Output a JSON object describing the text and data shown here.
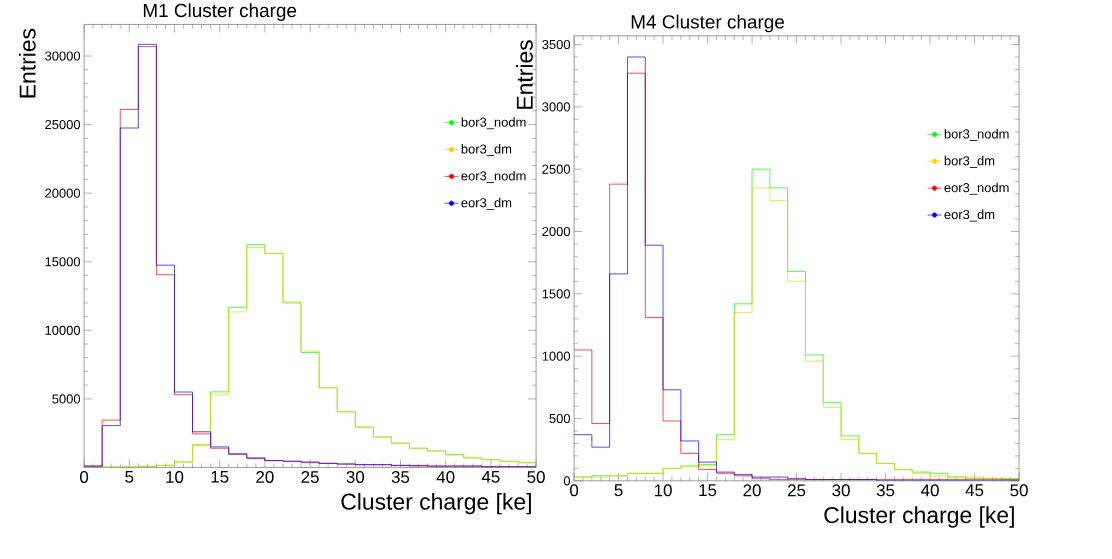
{
  "chart_data": [
    {
      "type": "histogram",
      "title": "M1 Cluster charge",
      "xlabel": "Cluster charge [ke]",
      "ylabel": "Entries",
      "bins": [
        0,
        2,
        4,
        6,
        8,
        10,
        12,
        14,
        16,
        18,
        20,
        22,
        24,
        26,
        28,
        30,
        32,
        34,
        36,
        38,
        40,
        42,
        44,
        46,
        48,
        50
      ],
      "series": [
        {
          "name": "bor3_nodm",
          "color": "#00ff00",
          "values": [
            30,
            30,
            50,
            80,
            150,
            400,
            1650,
            5510,
            11670,
            16250,
            15600,
            12000,
            8380,
            5810,
            4060,
            2940,
            2220,
            1770,
            1400,
            1200,
            950,
            700,
            570,
            450,
            350
          ]
        },
        {
          "name": "bor3_dm",
          "color": "#ffcc00",
          "values": [
            30,
            30,
            50,
            80,
            150,
            400,
            1600,
            5300,
            11340,
            16030,
            15600,
            12070,
            8480,
            5810,
            4060,
            2940,
            2220,
            1770,
            1400,
            1200,
            900,
            700,
            570,
            450,
            350
          ]
        },
        {
          "name": "eor3_nodm",
          "color": "#ff0000",
          "values": [
            100,
            3450,
            26100,
            30700,
            14050,
            5300,
            2450,
            1400,
            950,
            650,
            500,
            450,
            350,
            300,
            250,
            200,
            200,
            150,
            100,
            100,
            100,
            100,
            50,
            50,
            50
          ]
        },
        {
          "name": "eor3_dm",
          "color": "#0000ff",
          "values": [
            100,
            3050,
            24750,
            30850,
            14750,
            5500,
            2600,
            1500,
            1000,
            700,
            500,
            450,
            400,
            300,
            250,
            200,
            200,
            150,
            150,
            100,
            100,
            100,
            50,
            50,
            50
          ]
        }
      ],
      "xlim": [
        0,
        50
      ],
      "ylim": [
        0,
        32300
      ],
      "xticks": [
        0,
        5,
        10,
        15,
        20,
        25,
        30,
        35,
        40,
        45,
        50
      ],
      "yticks": [
        5000,
        10000,
        15000,
        20000,
        25000,
        30000
      ],
      "legend": "right"
    },
    {
      "type": "histogram",
      "title": "M4 Cluster charge",
      "xlabel": "Cluster charge [ke]",
      "ylabel": "Entries",
      "bins": [
        0,
        2,
        4,
        6,
        8,
        10,
        12,
        14,
        16,
        18,
        20,
        22,
        24,
        26,
        28,
        30,
        32,
        34,
        36,
        38,
        40,
        42,
        44,
        46,
        48,
        50
      ],
      "series": [
        {
          "name": "bor3_nodm",
          "color": "#00ff00",
          "values": [
            30,
            40,
            40,
            60,
            60,
            100,
            120,
            130,
            370,
            1420,
            2500,
            2350,
            1680,
            1010,
            630,
            360,
            220,
            140,
            90,
            70,
            60,
            30,
            20,
            20,
            20
          ]
        },
        {
          "name": "bor3_dm",
          "color": "#ffcc00",
          "values": [
            30,
            30,
            40,
            60,
            60,
            100,
            110,
            120,
            330,
            1350,
            2350,
            2250,
            1600,
            960,
            590,
            330,
            220,
            140,
            90,
            60,
            40,
            30,
            30,
            20,
            10
          ]
        },
        {
          "name": "eor3_nodm",
          "color": "#ff0000",
          "values": [
            1050,
            460,
            2380,
            3270,
            1310,
            480,
            220,
            90,
            60,
            40,
            20,
            10,
            10,
            10,
            10,
            10,
            10,
            10,
            10,
            10,
            10,
            10,
            10,
            10,
            10
          ]
        },
        {
          "name": "eor3_dm",
          "color": "#0000ff",
          "values": [
            370,
            270,
            1660,
            3400,
            1890,
            730,
            320,
            150,
            70,
            50,
            30,
            30,
            20,
            10,
            10,
            10,
            10,
            0,
            0,
            0,
            0,
            0,
            0,
            0,
            0
          ]
        }
      ],
      "xlim": [
        0,
        50
      ],
      "ylim": [
        0,
        3570
      ],
      "xticks": [
        0,
        5,
        10,
        15,
        20,
        25,
        30,
        35,
        40,
        45,
        50
      ],
      "yticks": [
        0,
        500,
        1000,
        1500,
        2000,
        2500,
        3000,
        3500
      ],
      "legend": "right"
    }
  ]
}
